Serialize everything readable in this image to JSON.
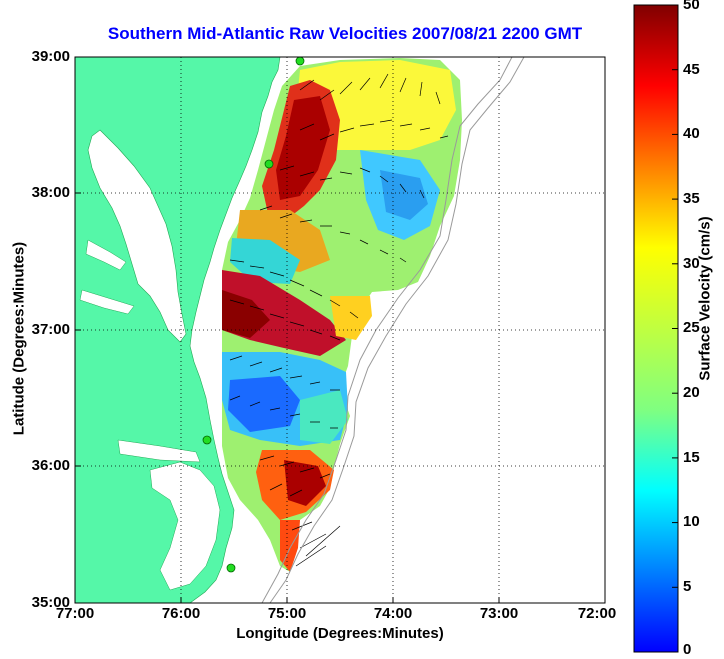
{
  "title": "Southern Mid-Atlantic Raw Velocities 2007/08/21 2200 GMT",
  "x_axis_label": "Longitude (Degrees:Minutes)",
  "y_axis_label": "Latitude (Degrees:Minutes)",
  "colorbar_label": "Surface Velocity (cm/s)",
  "x_ticks": [
    "77:00",
    "76:00",
    "75:00",
    "74:00",
    "73:00",
    "72:00"
  ],
  "y_ticks": [
    "39:00",
    "38:00",
    "37:00",
    "36:00",
    "35:00"
  ],
  "colorbar_ticks": [
    "50",
    "45",
    "40",
    "35",
    "30",
    "25",
    "20",
    "15",
    "10",
    "5",
    "0"
  ],
  "colors": {
    "land": "#55f7a8",
    "water": "#ffffff",
    "title": "#0000ff",
    "grid": "#000000",
    "bathymetry": "#9a9a9a",
    "station_marker": "#22dd22"
  },
  "colormap": "jet",
  "colorbar_range": [
    0,
    50
  ],
  "map_extent": {
    "lon": [
      -77,
      -72
    ],
    "lat": [
      35,
      39
    ]
  },
  "grid": "dotted"
}
